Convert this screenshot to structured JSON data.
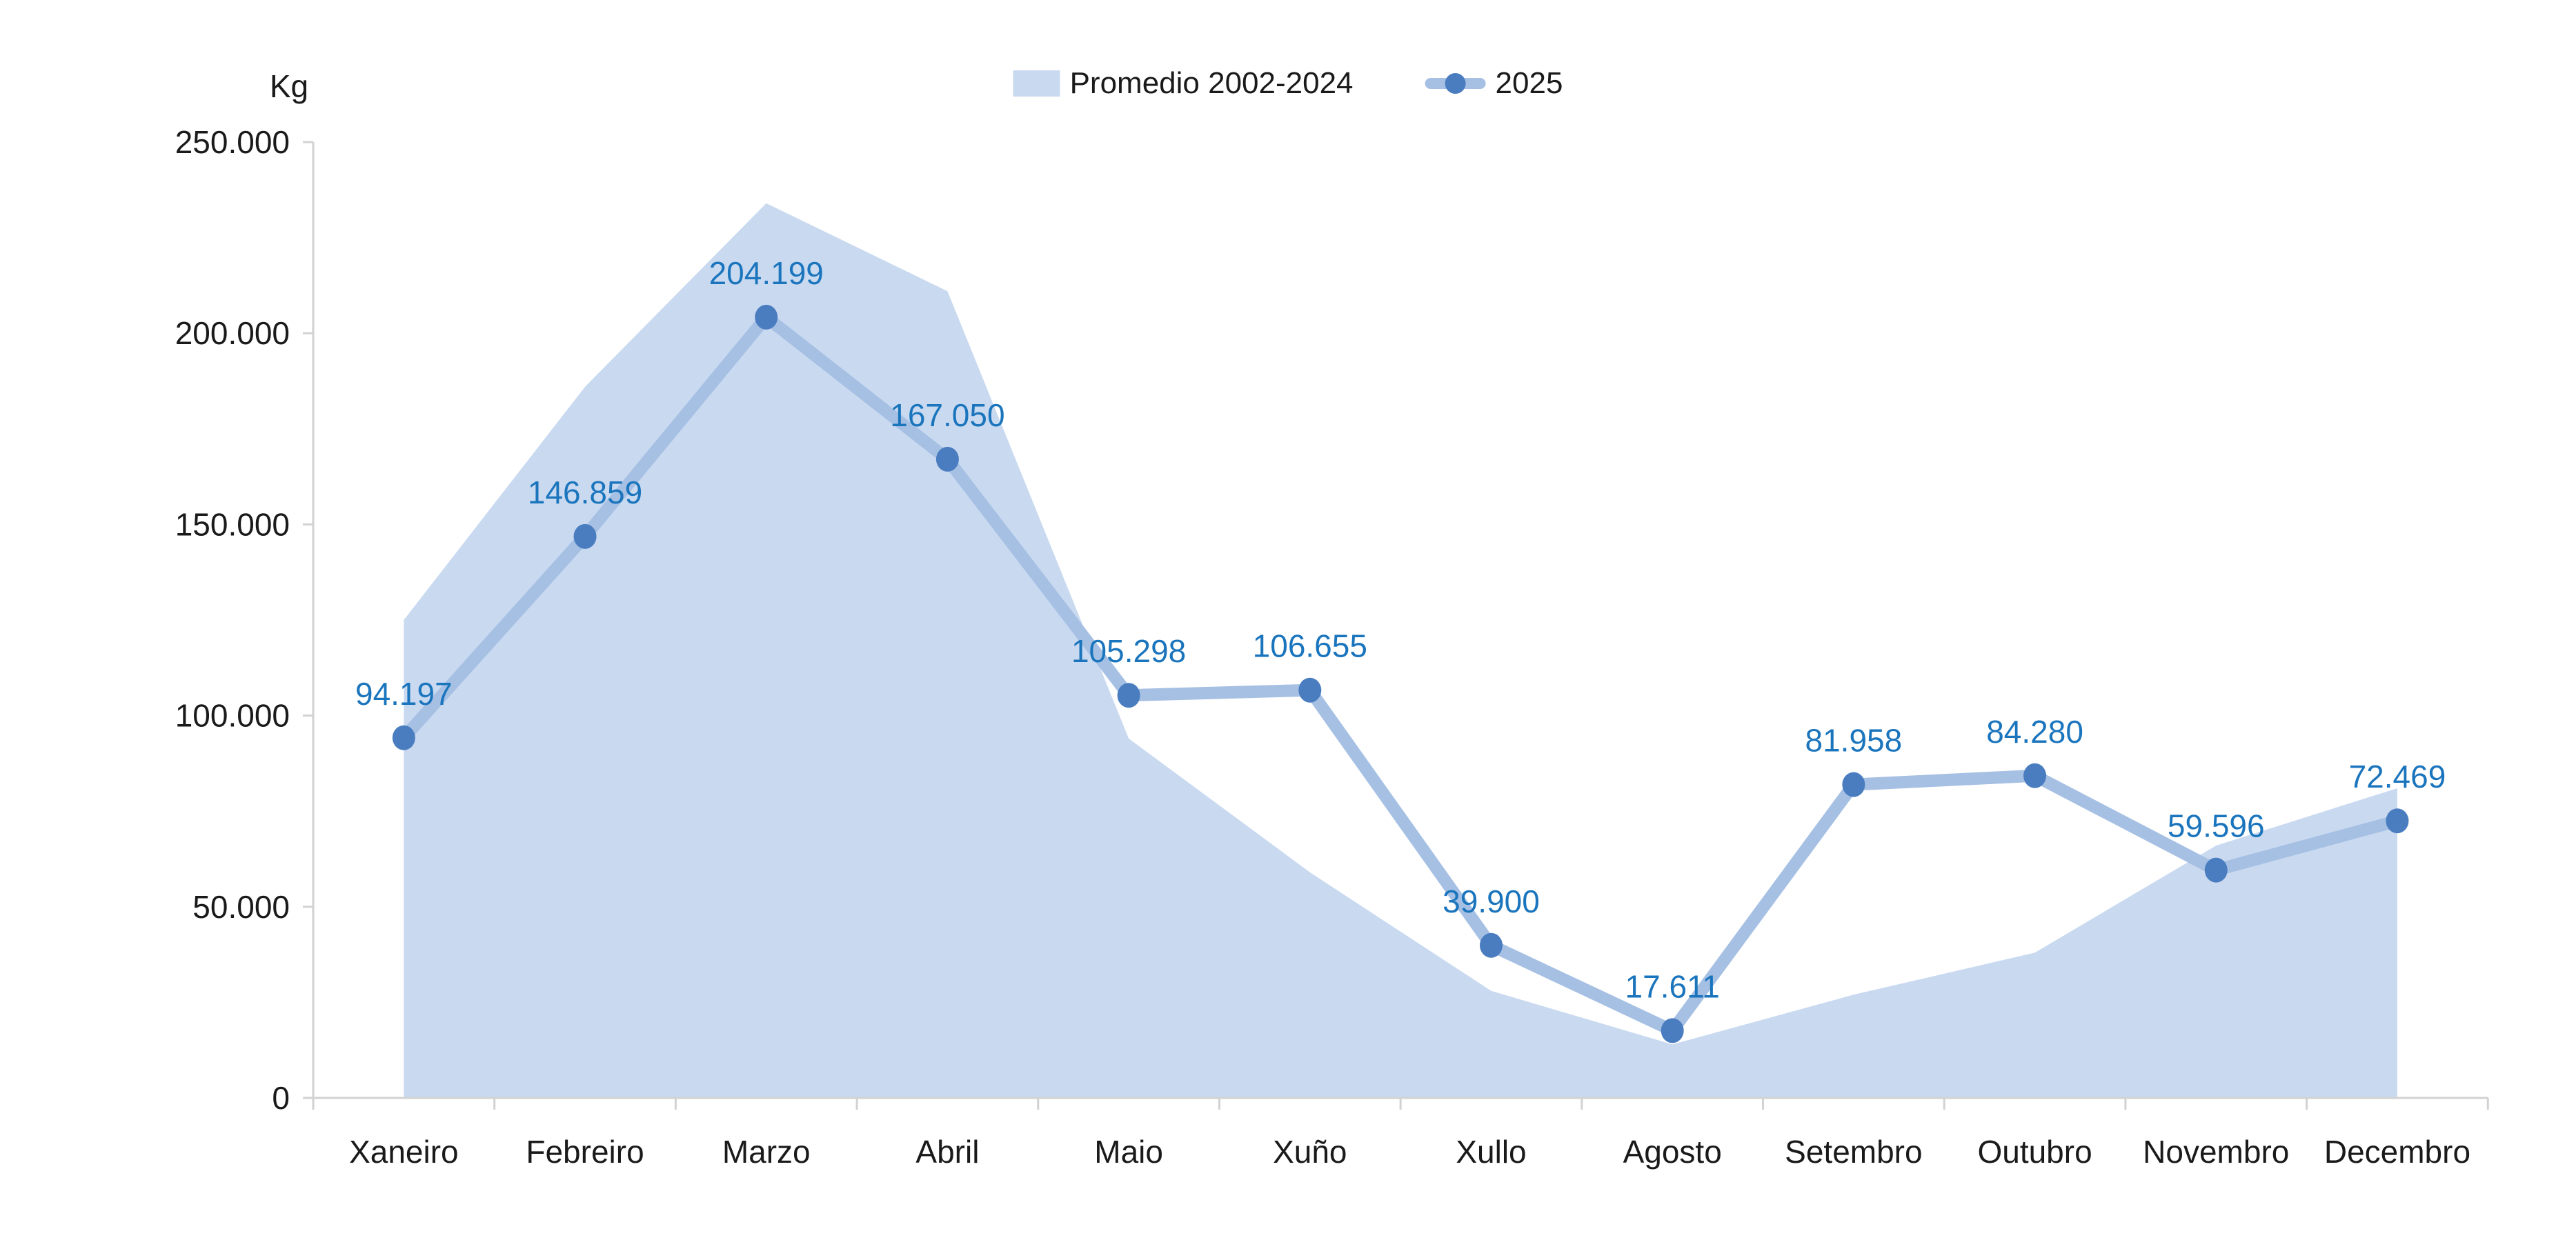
{
  "unit_label": "Kg",
  "legend": {
    "promedio_label": "Promedio 2002-2024",
    "line_label": "2025"
  },
  "colors": {
    "area_fill": "#c8d9f0",
    "line": "#a6c0e4",
    "marker": "#4a7dc0",
    "data_label": "#1b75bd",
    "axis": "#d2d2d2",
    "text": "#1a1a1a"
  },
  "chart_data": {
    "type": "area",
    "title": "",
    "xlabel": "",
    "ylabel": "Kg",
    "categories": [
      "Xaneiro",
      "Febreiro",
      "Marzo",
      "Abril",
      "Maio",
      "Xuño",
      "Xullo",
      "Agosto",
      "Setembro",
      "Outubro",
      "Novembro",
      "Decembro"
    ],
    "series": [
      {
        "name": "Promedio 2002-2024",
        "type": "area",
        "values": [
          125000,
          186000,
          234000,
          211000,
          94000,
          59000,
          28000,
          14000,
          27000,
          38000,
          66000,
          81000
        ],
        "note": "values estimated from filled area profile"
      },
      {
        "name": "2025",
        "type": "line",
        "values": [
          94197,
          146859,
          204199,
          167050,
          105298,
          106655,
          39900,
          17611,
          81958,
          84280,
          59596,
          72469
        ],
        "labels": [
          "94.197",
          "146.859",
          "204.199",
          "167.050",
          "105.298",
          "106.655",
          "39.900",
          "17.611",
          "81.958",
          "84.280",
          "59.596",
          "72.469"
        ]
      }
    ],
    "ylim": [
      0,
      250000
    ],
    "yticks": [
      {
        "value": 0,
        "label": "0"
      },
      {
        "value": 50000,
        "label": "50.000"
      },
      {
        "value": 100000,
        "label": "100.000"
      },
      {
        "value": 150000,
        "label": "150.000"
      },
      {
        "value": 200000,
        "label": "200.000"
      },
      {
        "value": 250000,
        "label": "250.000"
      }
    ],
    "grid": false,
    "legend_position": "top-center"
  }
}
